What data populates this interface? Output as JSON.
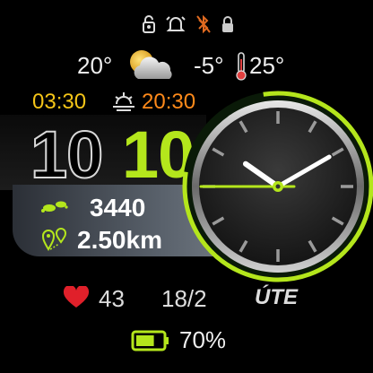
{
  "status": {
    "icons": [
      "lock-icon",
      "alarm-bell-icon",
      "bluetooth-disabled-icon",
      "lock-closed-icon"
    ]
  },
  "weather": {
    "current_temp": "20°",
    "condition_icon": "partly-cloudy-icon",
    "min_temp": "-5°",
    "max_temp": "25°"
  },
  "sun": {
    "sunrise": "03:30",
    "sunset": "20:30"
  },
  "time": {
    "hours": "10",
    "minutes": "10"
  },
  "activity": {
    "steps": "3440",
    "distance": "2.50km"
  },
  "health": {
    "heart_rate": "43"
  },
  "date": {
    "day_month": "18/2",
    "weekday": "ÚTE"
  },
  "battery": {
    "level_text": "70%",
    "level": 0.7
  },
  "colors": {
    "accent": "#b4e61c",
    "sunrise": "#f5c518",
    "sunset": "#ff8a1a",
    "heart": "#e0202a"
  }
}
